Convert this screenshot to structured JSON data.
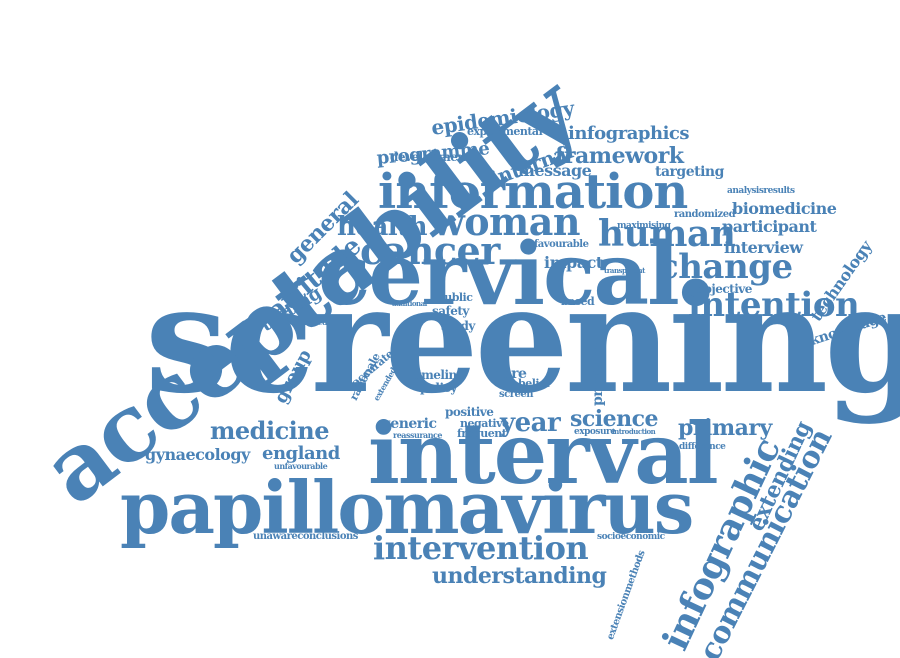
{
  "cloud": {
    "color": "#4a82b6",
    "words": [
      "screening",
      "acceptability",
      "cervical",
      "interval",
      "papillomavirus",
      "information",
      "woman",
      "cancer",
      "human",
      "health",
      "change",
      "intention",
      "infographic",
      "communication",
      "intervention",
      "understanding",
      "medicine",
      "primary",
      "year",
      "science",
      "extending",
      "gynaecology",
      "england",
      "framework",
      "message",
      "epidemiology",
      "programme",
      "internal",
      "infographics",
      "development",
      "experimental",
      "targeting",
      "general",
      "attitude",
      "testing",
      "group",
      "biomedicine",
      "participant",
      "interview",
      "technology",
      "knowledge",
      "objective",
      "impact",
      "favourable",
      "randomized",
      "maximising",
      "analysisresults",
      "safety",
      "public",
      "study",
      "policy",
      "timeline",
      "generic",
      "negative",
      "frequent",
      "positive",
      "more",
      "belief",
      "screen",
      "provision",
      "exposure",
      "reassurance",
      "controlled",
      "accurate",
      "rationale",
      "extended",
      "unawareconclusions",
      "socioeconomic",
      "extensionmethods",
      "difference",
      "unfavourable",
      "based",
      "transparent",
      "additional",
      "introduction"
    ]
  }
}
